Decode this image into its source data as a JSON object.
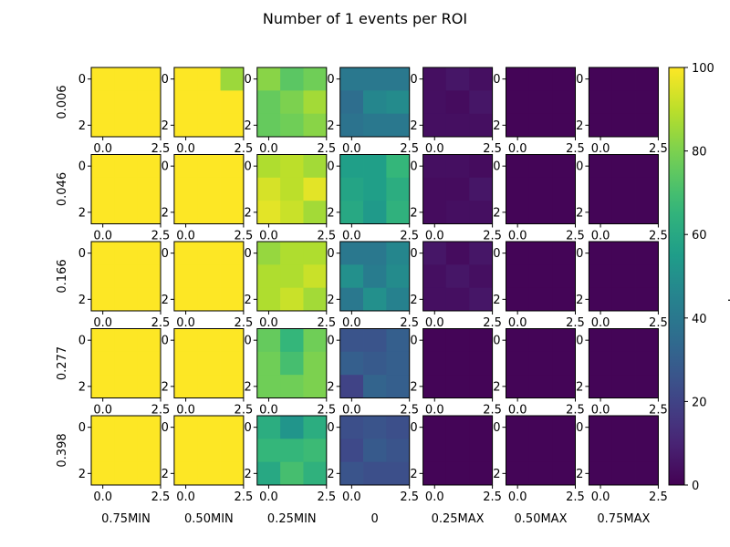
{
  "chart_data": {
    "type": "heatmap",
    "title": "Number of 1 events per ROI",
    "row_labels": [
      "0.006",
      "0.046",
      "0.166",
      "0.277",
      "0.398"
    ],
    "col_labels": [
      "0.75MIN",
      "0.50MIN",
      "0.25MIN",
      "0",
      "0.25MAX",
      "0.50MAX",
      "0.75MAX"
    ],
    "cell_x_ticks": [
      "0.0",
      "2.5"
    ],
    "cell_y_ticks": [
      "0",
      "2"
    ],
    "grid_size": [
      3,
      3
    ],
    "colormap": "viridis",
    "colorbar": {
      "label": "Color Map",
      "range": [
        0,
        100
      ],
      "ticks": [
        0,
        20,
        40,
        60,
        80,
        100
      ]
    },
    "values": [
      [
        [
          [
            100,
            100,
            100
          ],
          [
            100,
            100,
            100
          ],
          [
            100,
            100,
            100
          ]
        ],
        [
          [
            100,
            100,
            85
          ],
          [
            100,
            100,
            100
          ],
          [
            100,
            100,
            100
          ]
        ],
        [
          [
            82,
            74,
            78
          ],
          [
            76,
            80,
            86
          ],
          [
            76,
            78,
            82
          ]
        ],
        [
          [
            40,
            40,
            40
          ],
          [
            36,
            46,
            48
          ],
          [
            38,
            40,
            40
          ]
        ],
        [
          [
            4,
            6,
            4
          ],
          [
            4,
            3,
            6
          ],
          [
            4,
            4,
            4
          ]
        ],
        [
          [
            1,
            1,
            1
          ],
          [
            1,
            1,
            1
          ],
          [
            1,
            1,
            1
          ]
        ],
        [
          [
            1,
            1,
            1
          ],
          [
            1,
            1,
            1
          ],
          [
            1,
            1,
            1
          ]
        ]
      ],
      [
        [
          [
            100,
            100,
            100
          ],
          [
            100,
            100,
            100
          ],
          [
            100,
            100,
            100
          ]
        ],
        [
          [
            100,
            100,
            100
          ],
          [
            100,
            100,
            100
          ],
          [
            100,
            100,
            100
          ]
        ],
        [
          [
            88,
            90,
            86
          ],
          [
            94,
            90,
            96
          ],
          [
            96,
            92,
            86
          ]
        ],
        [
          [
            56,
            56,
            66
          ],
          [
            58,
            56,
            62
          ],
          [
            60,
            54,
            64
          ]
        ],
        [
          [
            4,
            4,
            3
          ],
          [
            3,
            3,
            6
          ],
          [
            3,
            4,
            4
          ]
        ],
        [
          [
            1,
            1,
            1
          ],
          [
            1,
            1,
            1
          ],
          [
            1,
            1,
            1
          ]
        ],
        [
          [
            1,
            1,
            1
          ],
          [
            1,
            1,
            1
          ],
          [
            1,
            1,
            1
          ]
        ]
      ],
      [
        [
          [
            100,
            100,
            100
          ],
          [
            100,
            100,
            100
          ],
          [
            100,
            100,
            100
          ]
        ],
        [
          [
            100,
            100,
            100
          ],
          [
            100,
            100,
            100
          ],
          [
            100,
            100,
            100
          ]
        ],
        [
          [
            84,
            88,
            88
          ],
          [
            88,
            88,
            92
          ],
          [
            88,
            92,
            86
          ]
        ],
        [
          [
            40,
            40,
            46
          ],
          [
            50,
            42,
            48
          ],
          [
            40,
            50,
            44
          ]
        ],
        [
          [
            6,
            3,
            6
          ],
          [
            4,
            6,
            4
          ],
          [
            4,
            4,
            6
          ]
        ],
        [
          [
            1,
            1,
            1
          ],
          [
            1,
            1,
            1
          ],
          [
            1,
            1,
            1
          ]
        ],
        [
          [
            1,
            1,
            1
          ],
          [
            1,
            1,
            1
          ],
          [
            1,
            1,
            1
          ]
        ]
      ],
      [
        [
          [
            100,
            100,
            100
          ],
          [
            100,
            100,
            100
          ],
          [
            100,
            100,
            100
          ]
        ],
        [
          [
            100,
            100,
            100
          ],
          [
            100,
            100,
            100
          ],
          [
            100,
            100,
            100
          ]
        ],
        [
          [
            76,
            66,
            78
          ],
          [
            78,
            70,
            80
          ],
          [
            78,
            78,
            80
          ]
        ],
        [
          [
            26,
            26,
            30
          ],
          [
            30,
            28,
            30
          ],
          [
            20,
            32,
            30
          ]
        ],
        [
          [
            1,
            1,
            1
          ],
          [
            1,
            1,
            1
          ],
          [
            1,
            1,
            1
          ]
        ],
        [
          [
            1,
            1,
            1
          ],
          [
            1,
            1,
            1
          ],
          [
            1,
            1,
            1
          ]
        ],
        [
          [
            1,
            1,
            1
          ],
          [
            1,
            1,
            1
          ],
          [
            1,
            1,
            1
          ]
        ]
      ],
      [
        [
          [
            100,
            100,
            100
          ],
          [
            100,
            100,
            100
          ],
          [
            100,
            100,
            100
          ]
        ],
        [
          [
            100,
            100,
            100
          ],
          [
            100,
            100,
            100
          ],
          [
            100,
            100,
            100
          ]
        ],
        [
          [
            62,
            52,
            62
          ],
          [
            66,
            66,
            68
          ],
          [
            60,
            70,
            64
          ]
        ],
        [
          [
            24,
            26,
            24
          ],
          [
            22,
            28,
            26
          ],
          [
            26,
            24,
            24
          ]
        ],
        [
          [
            1,
            1,
            1
          ],
          [
            1,
            1,
            1
          ],
          [
            1,
            1,
            1
          ]
        ],
        [
          [
            1,
            1,
            1
          ],
          [
            1,
            1,
            1
          ],
          [
            1,
            1,
            1
          ]
        ],
        [
          [
            1,
            1,
            1
          ],
          [
            1,
            1,
            1
          ],
          [
            1,
            1,
            1
          ]
        ]
      ]
    ]
  }
}
